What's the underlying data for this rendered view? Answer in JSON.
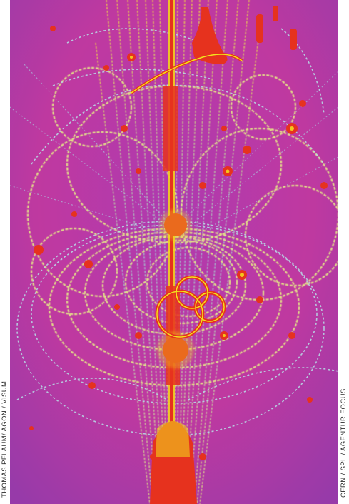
{
  "credits": {
    "left": "THOMAS PFLAUM/ AGON / VISUM",
    "right": "CERN / SPL / AGENTUR FOCUS"
  },
  "photo": {
    "background_color": "#c23aa6",
    "track_colors": [
      "#b6d7e6",
      "#e8f08a",
      "#f2e21c",
      "#e7321f"
    ]
  }
}
